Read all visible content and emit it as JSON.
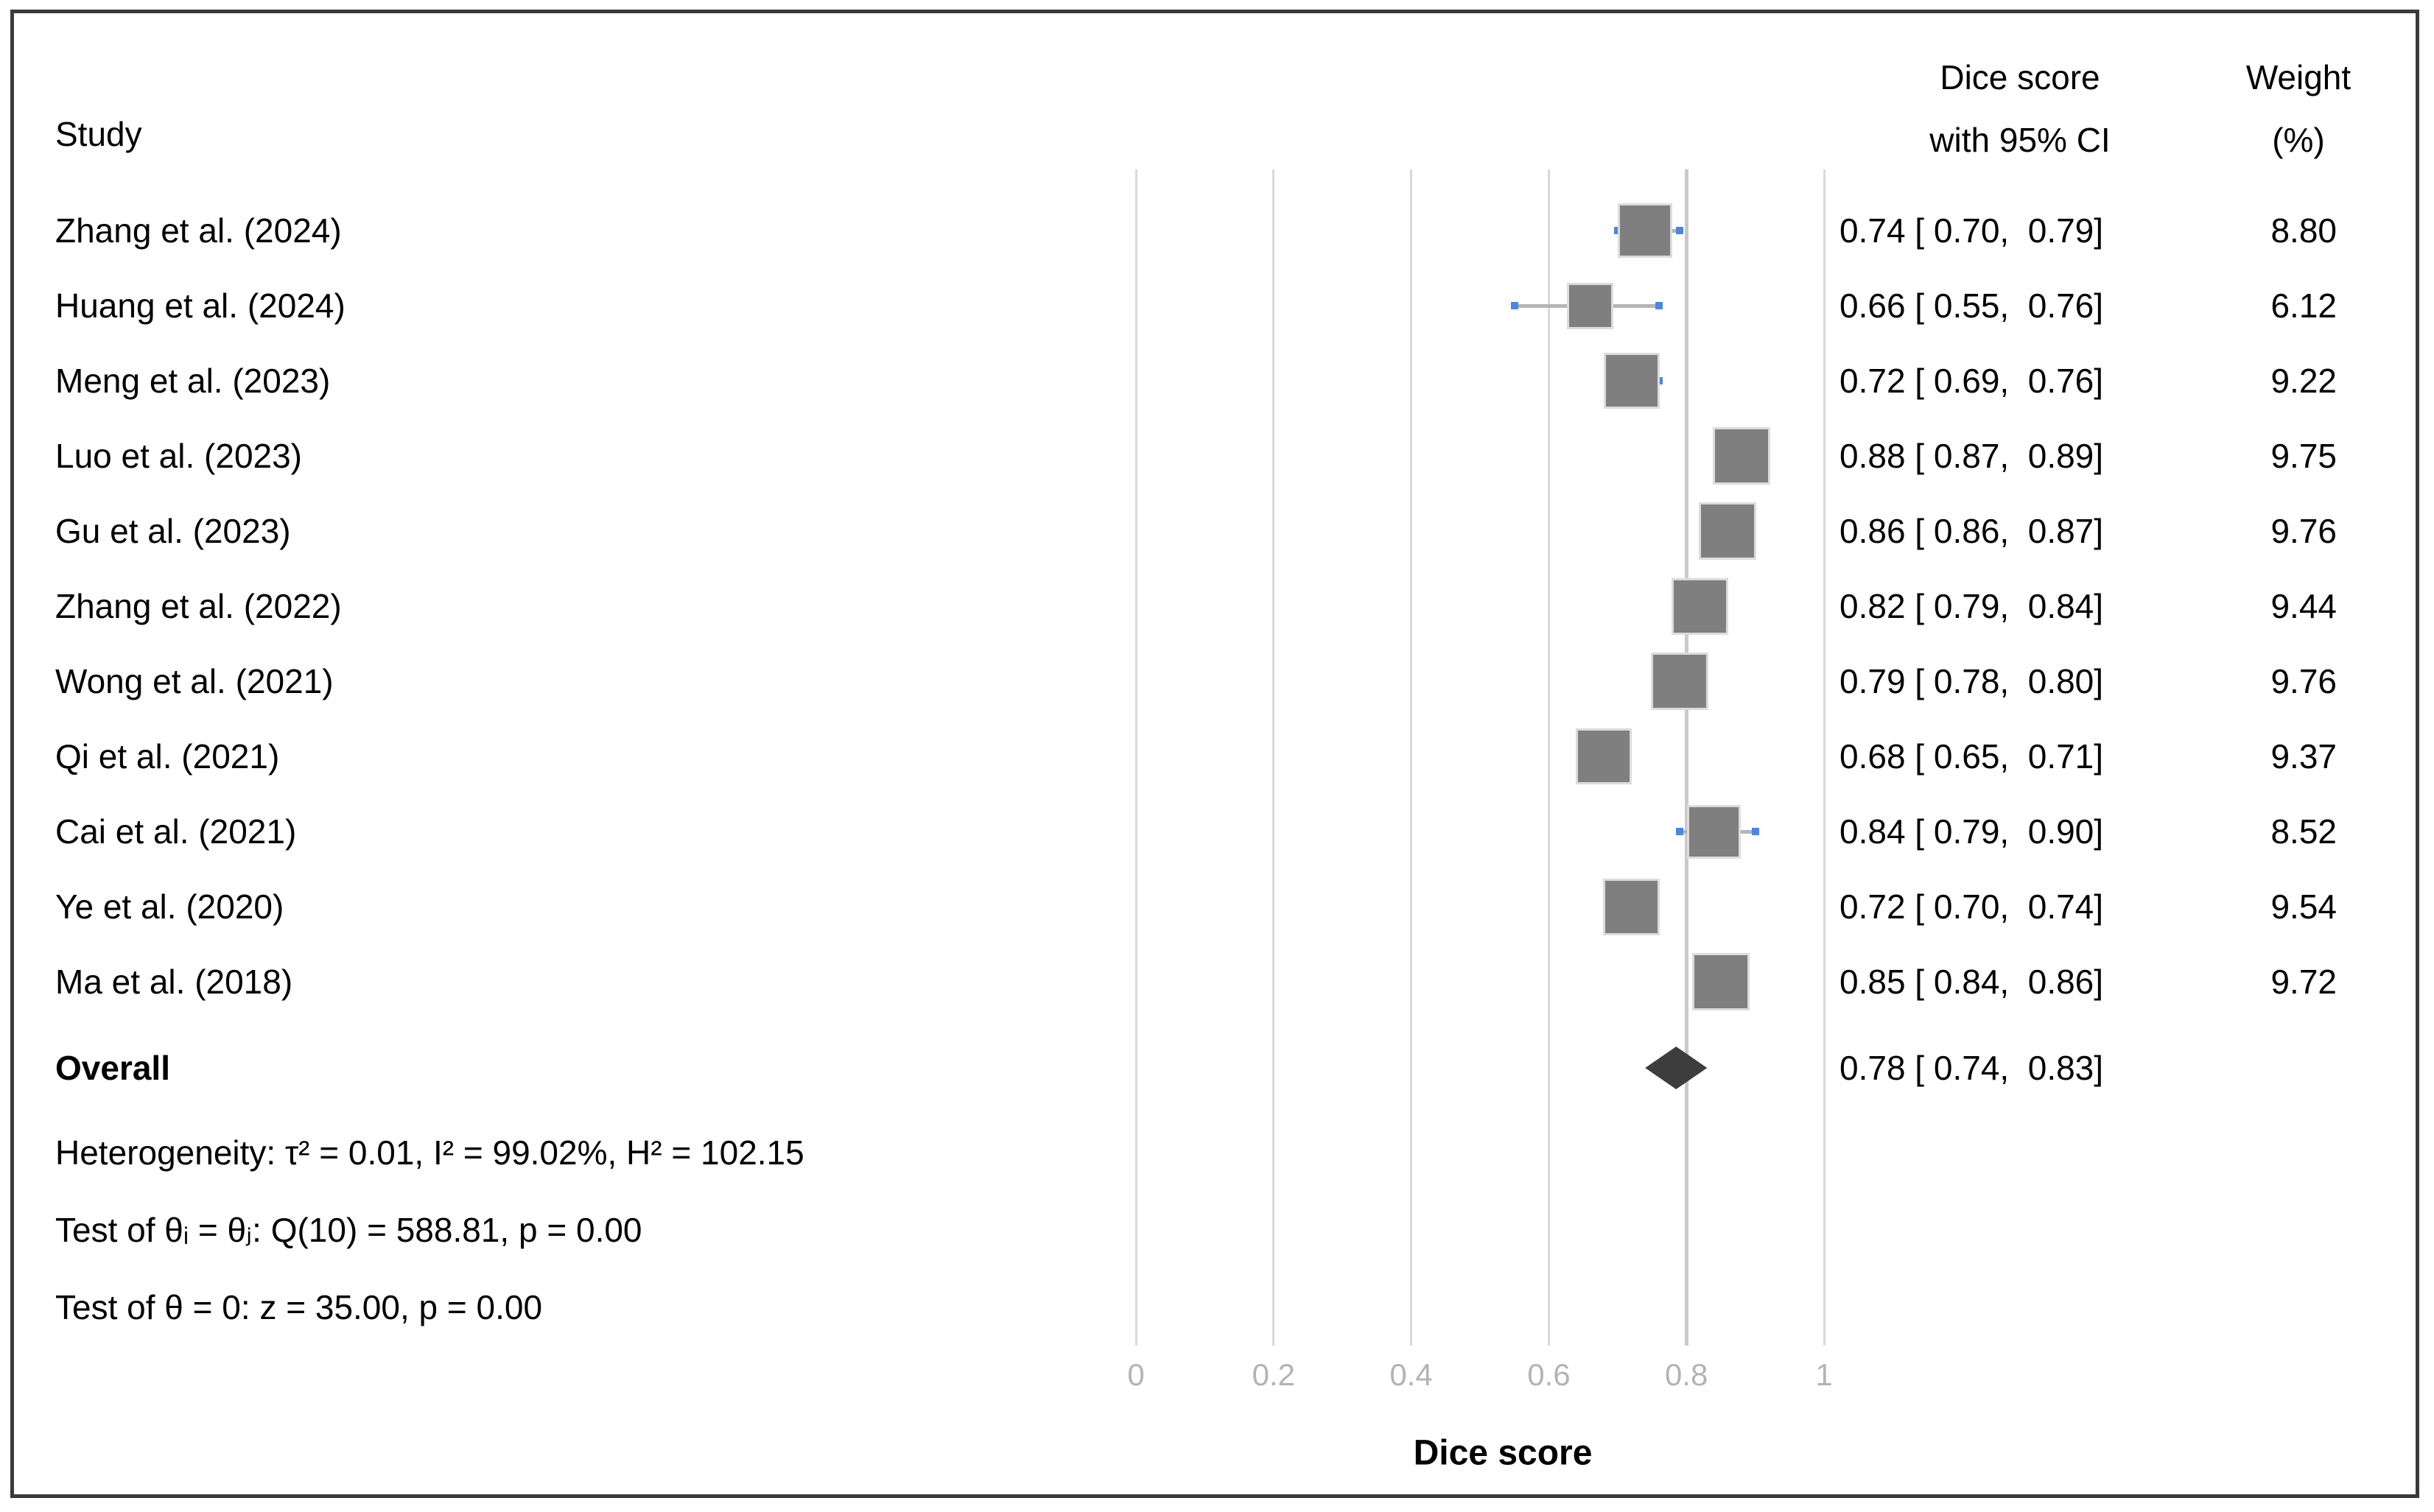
{
  "header": {
    "study_col": "Study",
    "effect_col_line1": "Dice score",
    "effect_col_line2": "with 95% CI",
    "weight_col_line1": "Weight",
    "weight_col_line2": "(%)"
  },
  "colors": {
    "square_fill": "#7f7f7f",
    "square_outline": "#dcdcdc",
    "whisker": "#b5b5b5",
    "whisker_cap_blue": "#4a86e8",
    "diamond": "#3d3d3d",
    "gridline": "#d9d9d9",
    "gridline_emphasis": "#c9c9c9",
    "tick_label": "#b3b3b3",
    "frame_border": "#3a3a3a",
    "text": "#000000"
  },
  "chart_data": {
    "type": "forest",
    "xlabel": "Dice score",
    "xlim": [
      0,
      1
    ],
    "xticks": [
      {
        "v": 0.0,
        "label": "0"
      },
      {
        "v": 0.2,
        "label": "0.2"
      },
      {
        "v": 0.4,
        "label": "0.4"
      },
      {
        "v": 0.6,
        "label": "0.6"
      },
      {
        "v": 0.8,
        "label": "0.8",
        "emph": true
      },
      {
        "v": 1.0,
        "label": "1"
      }
    ],
    "grid": true,
    "studies": [
      {
        "label": "Zhang et al. (2024)",
        "effect": 0.74,
        "ci_low": 0.7,
        "ci_high": 0.79,
        "weight_pct": 8.8,
        "effect_label": "0.74 [ 0.70,  0.79]",
        "weight_label": "8.80"
      },
      {
        "label": "Huang et al. (2024)",
        "effect": 0.66,
        "ci_low": 0.55,
        "ci_high": 0.76,
        "weight_pct": 6.12,
        "effect_label": "0.66 [ 0.55,  0.76]",
        "weight_label": "6.12"
      },
      {
        "label": "Meng et al. (2023)",
        "effect": 0.72,
        "ci_low": 0.69,
        "ci_high": 0.76,
        "weight_pct": 9.22,
        "effect_label": "0.72 [ 0.69,  0.76]",
        "weight_label": "9.22"
      },
      {
        "label": "Luo et al. (2023)",
        "effect": 0.88,
        "ci_low": 0.87,
        "ci_high": 0.89,
        "weight_pct": 9.75,
        "effect_label": "0.88 [ 0.87,  0.89]",
        "weight_label": "9.75"
      },
      {
        "label": "Gu et al. (2023)",
        "effect": 0.86,
        "ci_low": 0.86,
        "ci_high": 0.87,
        "weight_pct": 9.76,
        "effect_label": "0.86 [ 0.86,  0.87]",
        "weight_label": "9.76"
      },
      {
        "label": "Zhang et al. (2022)",
        "effect": 0.82,
        "ci_low": 0.79,
        "ci_high": 0.84,
        "weight_pct": 9.44,
        "effect_label": "0.82 [ 0.79,  0.84]",
        "weight_label": "9.44"
      },
      {
        "label": "Wong et al. (2021)",
        "effect": 0.79,
        "ci_low": 0.78,
        "ci_high": 0.8,
        "weight_pct": 9.76,
        "effect_label": "0.79 [ 0.78,  0.80]",
        "weight_label": "9.76"
      },
      {
        "label": "Qi et al. (2021)",
        "effect": 0.68,
        "ci_low": 0.65,
        "ci_high": 0.71,
        "weight_pct": 9.37,
        "effect_label": "0.68 [ 0.65,  0.71]",
        "weight_label": "9.37"
      },
      {
        "label": "Cai et al. (2021)",
        "effect": 0.84,
        "ci_low": 0.79,
        "ci_high": 0.9,
        "weight_pct": 8.52,
        "effect_label": "0.84 [ 0.79,  0.90]",
        "weight_label": "8.52"
      },
      {
        "label": "Ye et al. (2020)",
        "effect": 0.72,
        "ci_low": 0.7,
        "ci_high": 0.74,
        "weight_pct": 9.54,
        "effect_label": "0.72 [ 0.70,  0.74]",
        "weight_label": "9.54"
      },
      {
        "label": "Ma et al. (2018)",
        "effect": 0.85,
        "ci_low": 0.84,
        "ci_high": 0.86,
        "weight_pct": 9.72,
        "effect_label": "0.85 [ 0.84,  0.86]",
        "weight_label": "9.72"
      }
    ],
    "overall": {
      "label": "Overall",
      "effect": 0.78,
      "ci_low": 0.74,
      "ci_high": 0.83,
      "effect_label": "0.78 [ 0.74,  0.83]"
    },
    "heterogeneity_line": "Heterogeneity: τ² = 0.01, I² = 99.02%, H² = 102.15",
    "test_group_line": "Test of θᵢ = θⱼ: Q(10) = 588.81, p = 0.00",
    "test_zero_line": "Test of θ = 0: z = 35.00, p = 0.00"
  }
}
